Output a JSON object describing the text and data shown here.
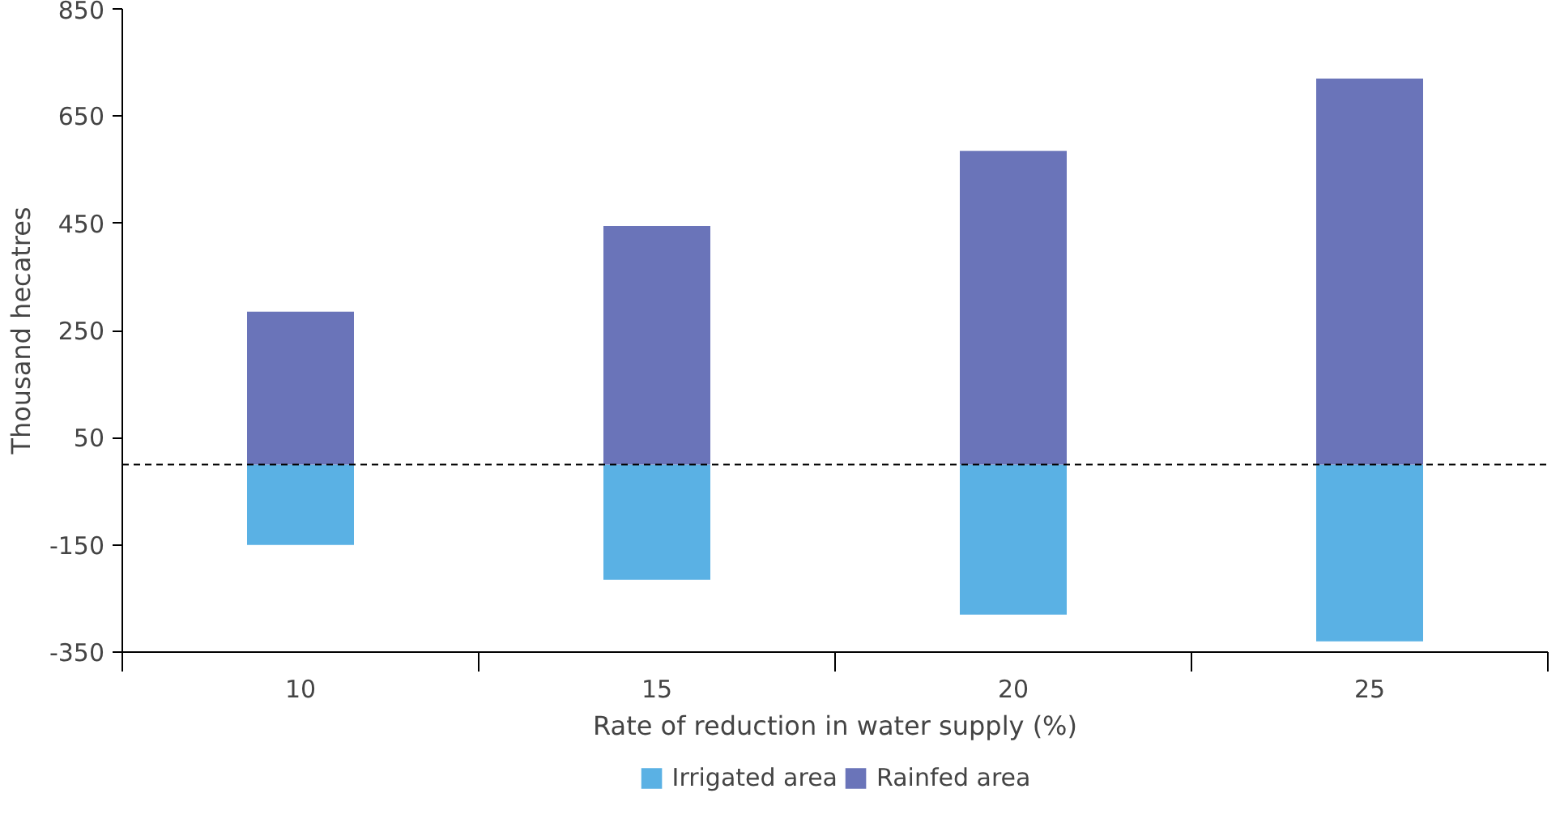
{
  "chart_data": {
    "type": "bar",
    "stacked": true,
    "xlabel": "Rate of reduction in water supply (%)",
    "ylabel": "Thousand hecatres",
    "categories": [
      "10",
      "15",
      "20",
      "25"
    ],
    "series": [
      {
        "name": "Irrigated area",
        "color": "#5ab1e4",
        "values": [
          -150,
          -215,
          -280,
          -330
        ]
      },
      {
        "name": "Rainfed area",
        "color": "#6a74b9",
        "values": [
          285,
          445,
          585,
          720
        ]
      }
    ],
    "ylim": [
      -350,
      850
    ],
    "yticks": [
      -350,
      -150,
      50,
      250,
      450,
      650,
      850
    ],
    "grid": false,
    "legend": "bottom",
    "ref_lines": [
      {
        "axis": "y",
        "value": 0,
        "line_style": "dashed",
        "color": "#000000"
      }
    ]
  }
}
